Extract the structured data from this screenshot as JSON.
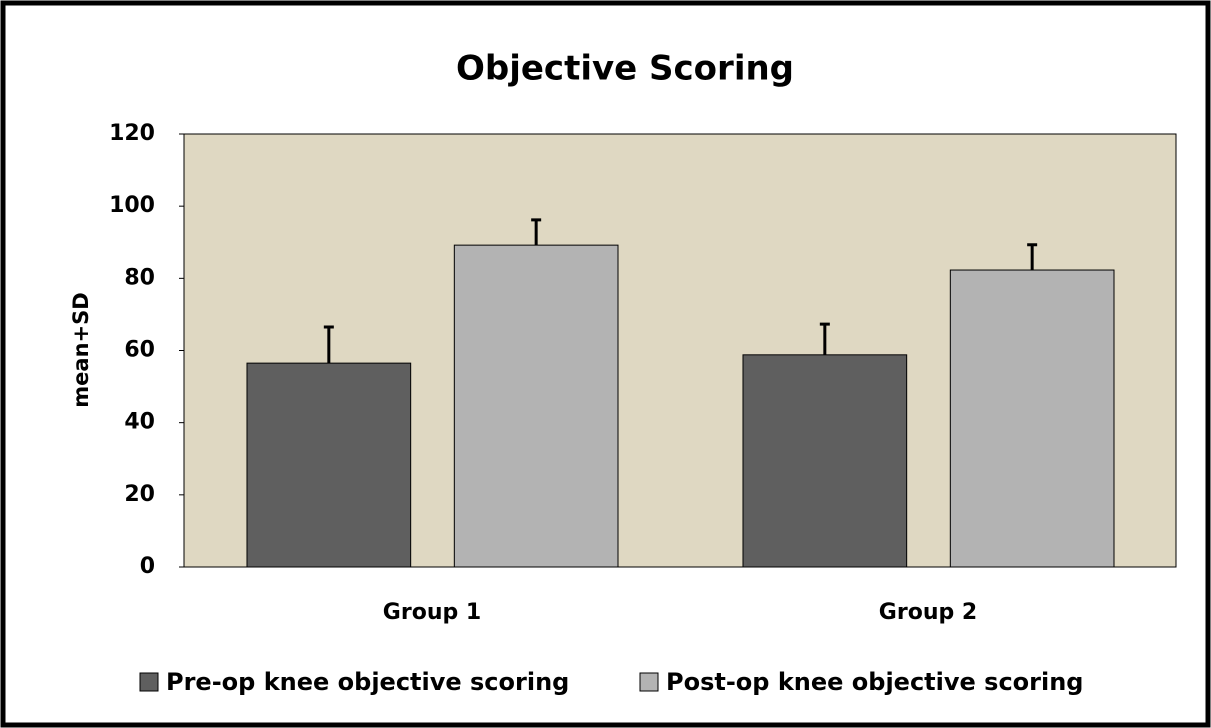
{
  "chart_data": {
    "type": "bar",
    "title": "Objective Scoring",
    "y_label": "mean+SD",
    "categories": [
      "Group 1",
      "Group 2"
    ],
    "series": [
      {
        "name": "Pre-op knee objective scoring",
        "color": "#5f5f5f",
        "values": [
          56.5,
          58.8
        ],
        "errors": [
          10,
          8.5
        ]
      },
      {
        "name": "Post-op knee objective scoring",
        "color": "#b3b3b3",
        "values": [
          89.2,
          82.3
        ],
        "errors": [
          7,
          7
        ]
      }
    ],
    "ylim": [
      0,
      120
    ],
    "yticks": [
      0,
      20,
      40,
      60,
      80,
      100,
      120
    ],
    "grid": false,
    "plot_background": "#dfd8c2",
    "legend": "bottom"
  }
}
